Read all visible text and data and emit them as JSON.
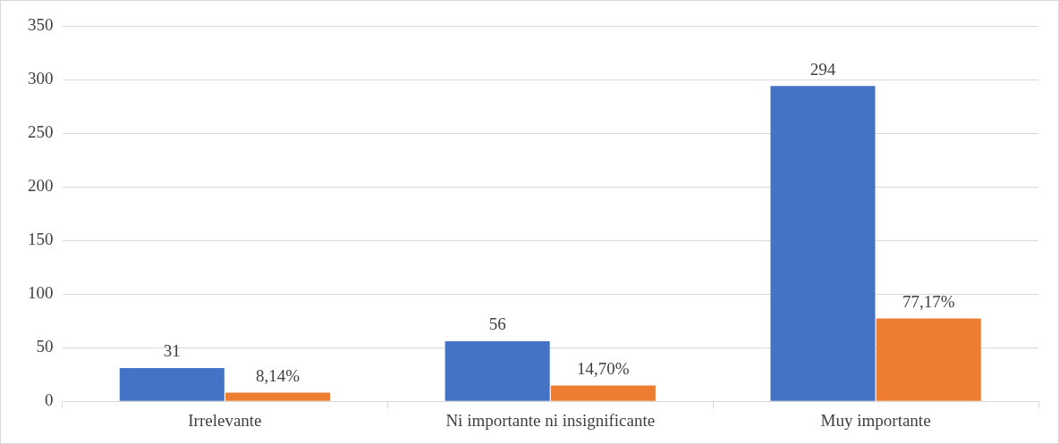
{
  "chart_data": {
    "type": "bar",
    "categories": [
      "Irrelevante",
      "Ni importante ni insignificante",
      "Muy importante"
    ],
    "series": [
      {
        "color": "#4472c4",
        "values": [
          31,
          56,
          294
        ],
        "value_labels": [
          "31",
          "56",
          "294"
        ]
      },
      {
        "color": "#ed7d31",
        "values": [
          8.14,
          14.7,
          77.17
        ],
        "value_labels": [
          "8,14%",
          "14,70%",
          "77,17%"
        ]
      }
    ],
    "ylim": [
      0,
      350
    ],
    "yticks": [
      0,
      50,
      100,
      150,
      200,
      250,
      300,
      350
    ],
    "grid": "y",
    "legend": false
  }
}
